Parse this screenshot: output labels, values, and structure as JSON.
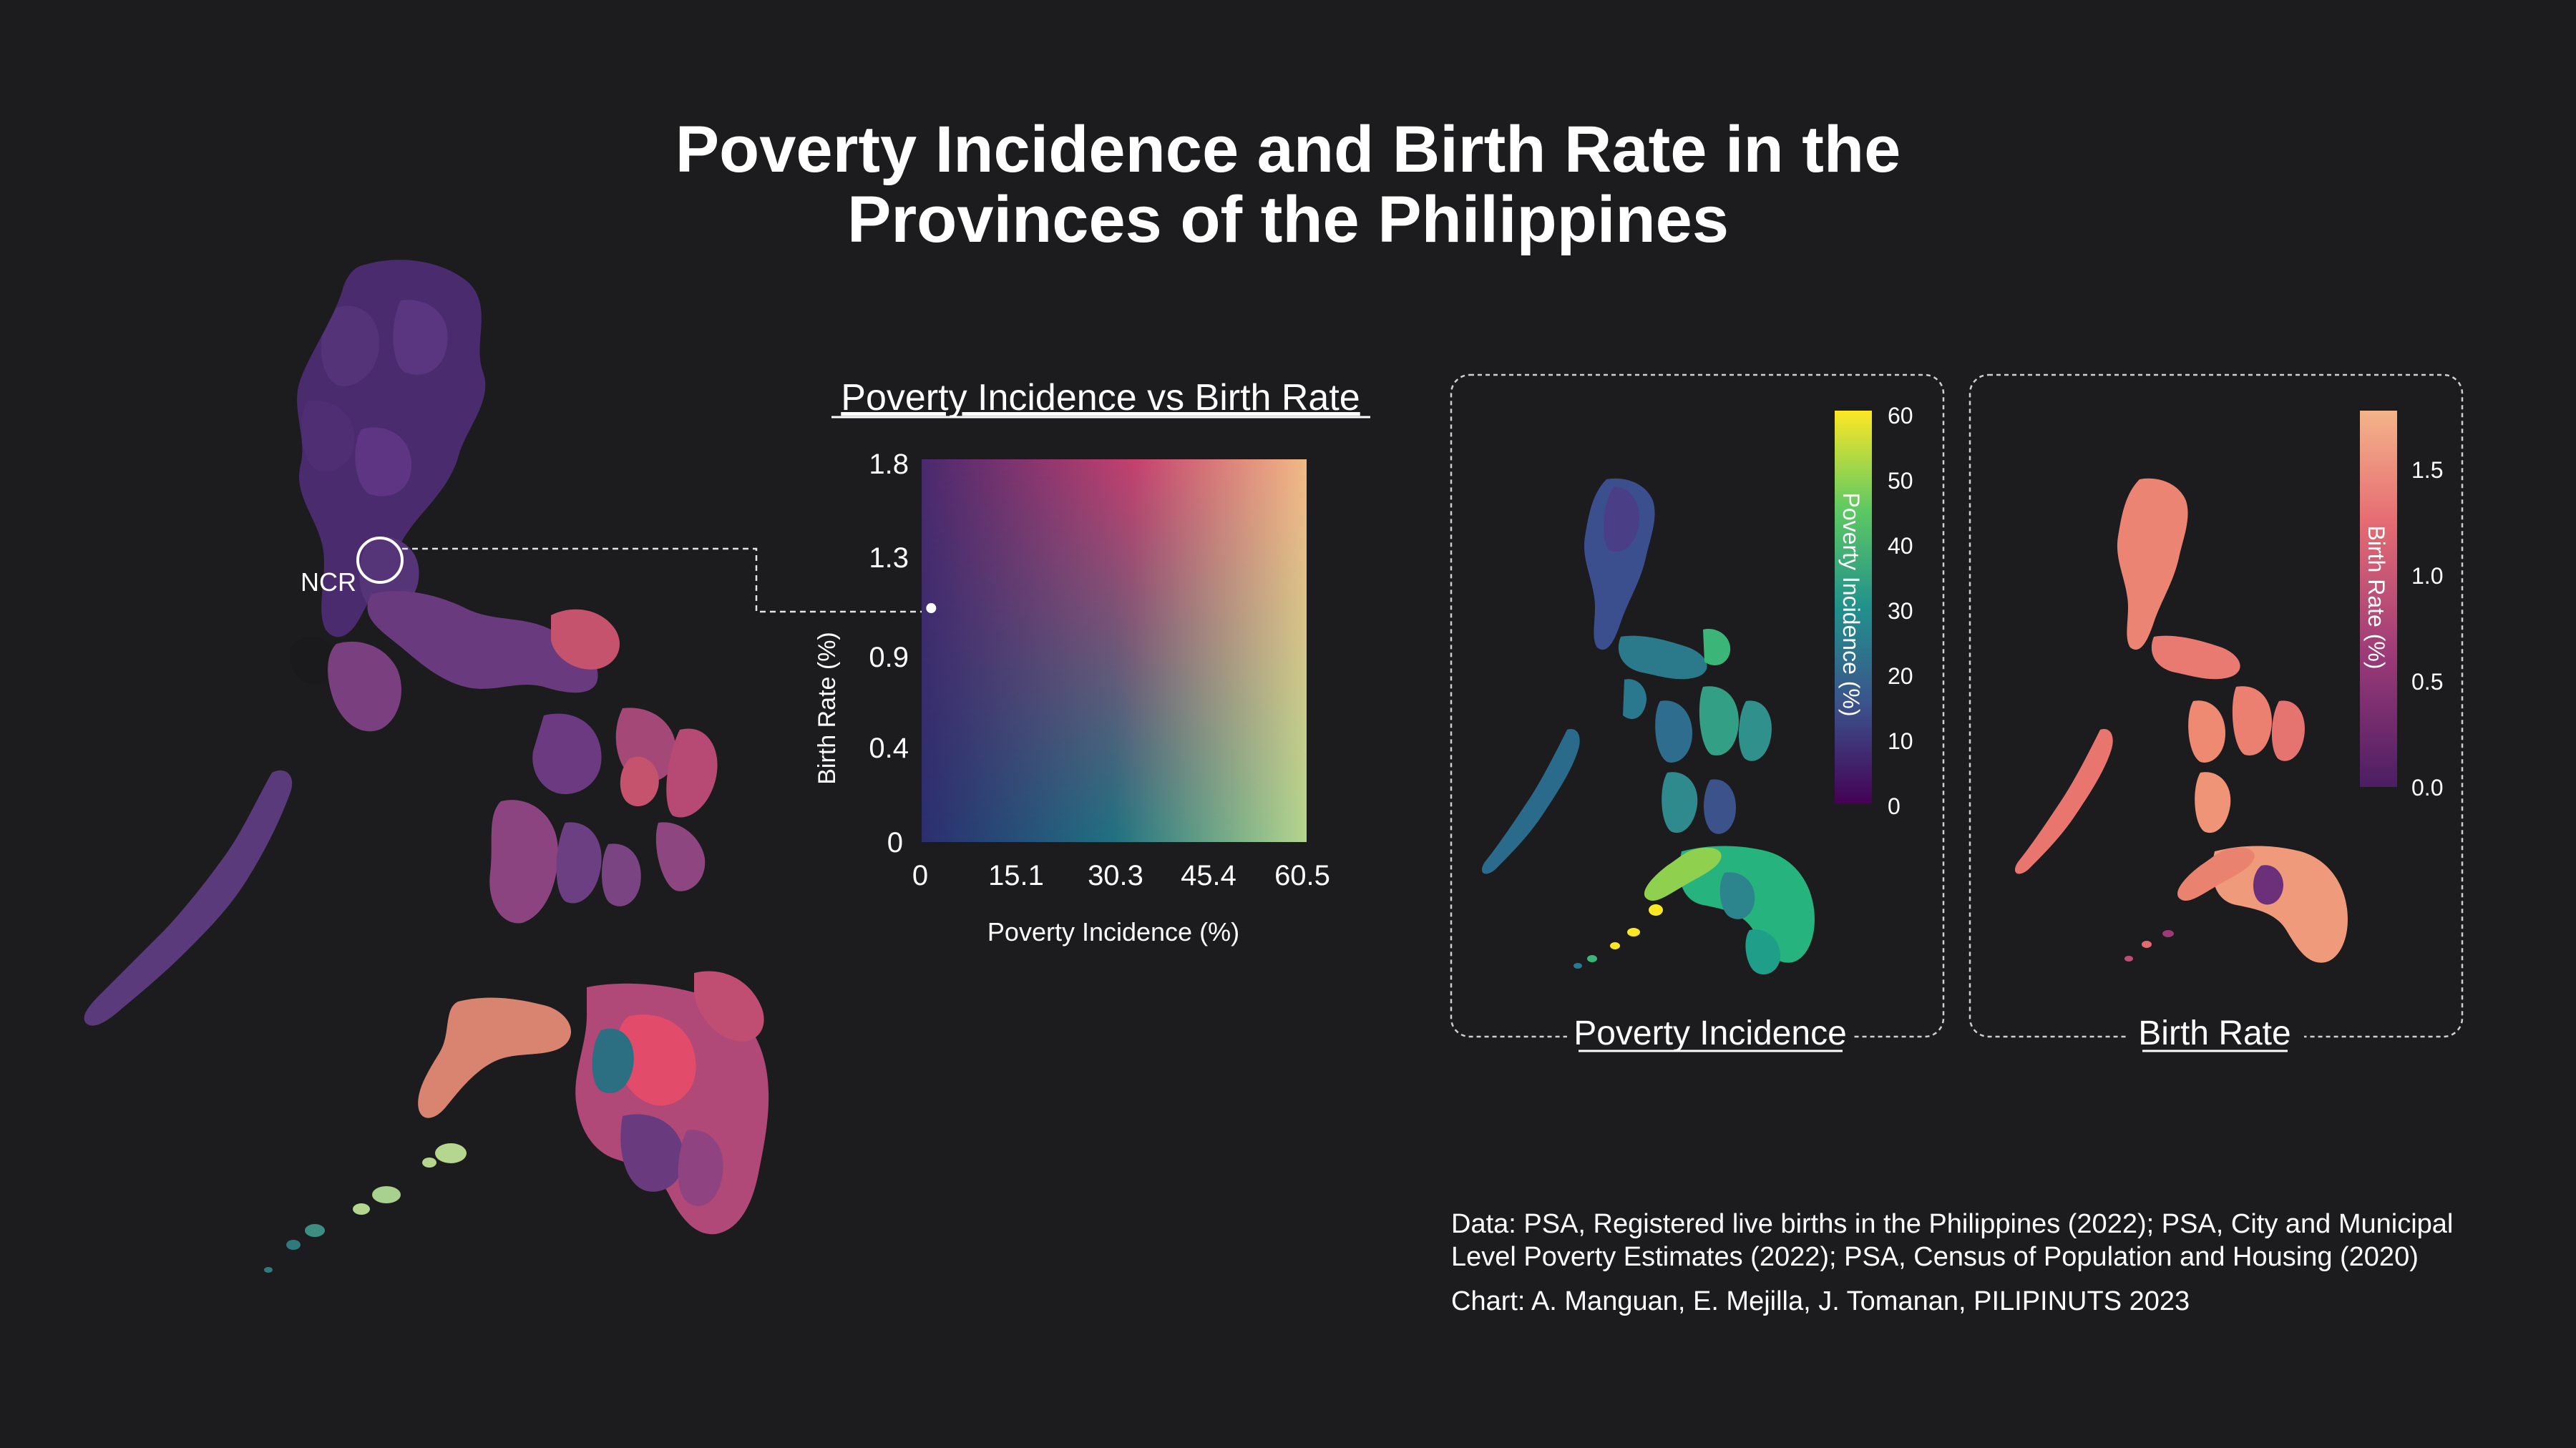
{
  "title": {
    "line1": "Poverty Incidence and Birth Rate in the",
    "line2": "Provinces of the Philippines"
  },
  "colors": {
    "background": "#1c1b1d",
    "dashed_frame": "#cfcfcf",
    "legend_top_left": "#5a2c70",
    "legend_top_right": "#f2b886",
    "legend_bottom_left": "#2f2f70",
    "legend_bottom_right": "#b4d68e",
    "viridis_low": "#440154",
    "viridis_high": "#fde725",
    "magma_low": "#4b1e63",
    "magma_high": "#f4b48a"
  },
  "main_map": {
    "callout_label": "NCR"
  },
  "bivariate_legend": {
    "title": "Poverty Incidence vs Birth Rate",
    "x_label": "Poverty Incidence (%)",
    "y_label": "Birth Rate (%)",
    "x_ticks": [
      "0",
      "15.1",
      "30.3",
      "45.4",
      "60.5"
    ],
    "y_ticks": [
      "1.8",
      "1.3",
      "0.9",
      "0.4",
      "0"
    ],
    "ncr_point": {
      "poverty_incidence": 1.5,
      "birth_rate": 1.1
    }
  },
  "poverty_panel": {
    "caption": "Poverty Incidence",
    "colorbar_label": "Poverty Incidence (%)",
    "ticks": [
      "60",
      "50",
      "40",
      "30",
      "20",
      "10",
      "0"
    ]
  },
  "birth_panel": {
    "caption": "Birth Rate",
    "colorbar_label": "Birth Rate (%)",
    "ticks": [
      "1.5",
      "1.0",
      "0.5",
      "0.0"
    ]
  },
  "source": {
    "data_text": "Data: PSA, Registered live births in the Philippines (2022); PSA, City and Municipal Level Poverty Estimates (2022); PSA, Census of Population and Housing (2020)",
    "chart_text": "Chart: A. Manguan, E. Mejilla, J. Tomanan, PILIPINUTS 2023"
  }
}
